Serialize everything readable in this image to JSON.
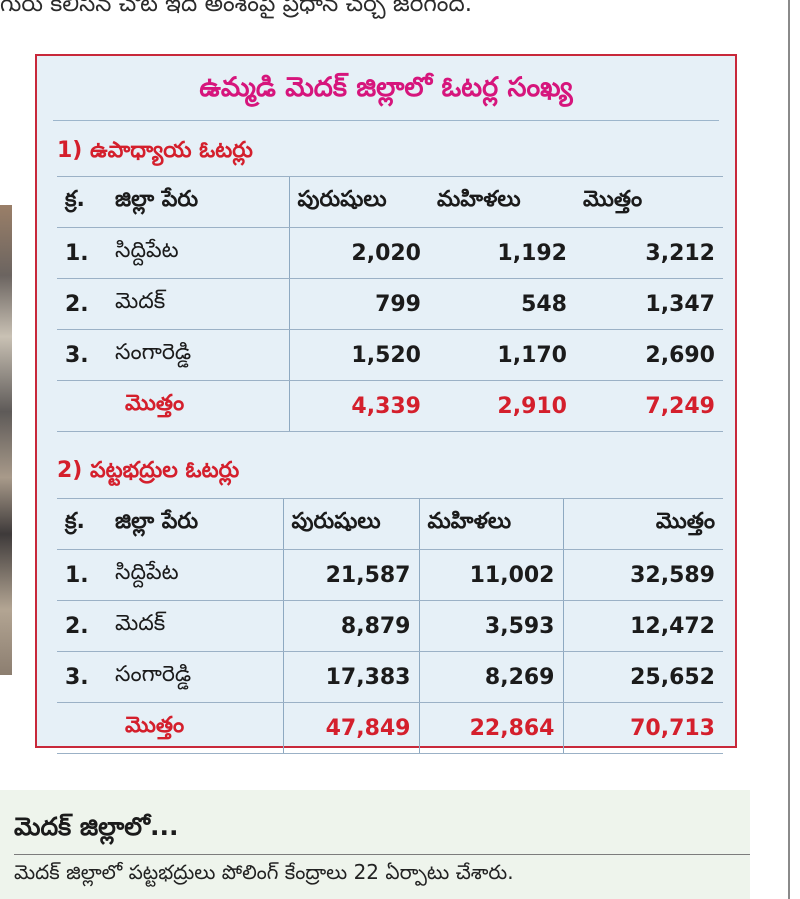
{
  "article": {
    "top_text": "గురు కలిసిన చోట ఇది అంశంపై ప్రధాన చర్చ జరిగింది."
  },
  "table_box": {
    "title": "ఉమ్మడి మెదక్ జిల్లాలో ఓటర్ల సంఖ్య",
    "sections": [
      {
        "title": "1) ఉపాధ్యాయ ఓటర్లు",
        "headers": [
          "క్ర.",
          "జిల్లా పేరు",
          "పురుషులు",
          "మహిళలు",
          "మొత్తం"
        ],
        "rows": [
          [
            "1.",
            "సిద్దిపేట",
            "2,020",
            "1,192",
            "3,212"
          ],
          [
            "2.",
            "మెదక్",
            "799",
            "548",
            "1,347"
          ],
          [
            "3.",
            "సంగారెడ్డి",
            "1,520",
            "1,170",
            "2,690"
          ]
        ],
        "total": [
          "",
          "మొత్తం",
          "4,339",
          "2,910",
          "7,249"
        ]
      },
      {
        "title": "2) పట్టభద్రుల ఓటర్లు",
        "headers": [
          "క్ర.",
          "జిల్లా పేరు",
          "పురుషులు",
          "మహిళలు",
          "మొత్తం"
        ],
        "rows": [
          [
            "1.",
            "సిద్దిపేట",
            "21,587",
            "11,002",
            "32,589"
          ],
          [
            "2.",
            "మెదక్",
            "8,879",
            "3,593",
            "12,472"
          ],
          [
            "3.",
            "సంగారెడ్డి",
            "17,383",
            "8,269",
            "25,652"
          ]
        ],
        "total": [
          "",
          "మొత్తం",
          "47,849",
          "22,864",
          "70,713"
        ]
      }
    ]
  },
  "sidebar_box": {
    "title": "మెదక్ జిల్లాలో...",
    "text": "మెదక్ జిల్లాలో పట్టభద్రులు పోలింగ్ కేంద్రాలు 22 ఏర్పాటు చేశారు."
  },
  "colors": {
    "accent_red": "#d41f2c",
    "title_magenta": "#d6157c",
    "table_bg": "#e6f0f7",
    "sidebar_bg": "#eef4ec"
  }
}
